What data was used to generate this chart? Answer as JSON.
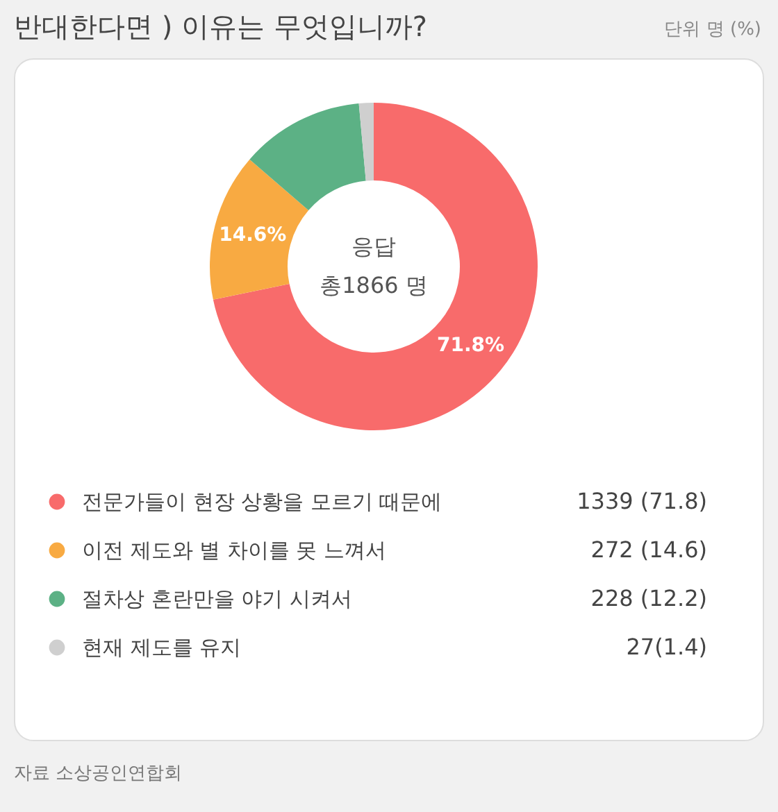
{
  "chart_data": {
    "type": "donut",
    "title": "반대한다면 ) 이유는 무엇입니까?",
    "subtitle": "단위 명 (%)",
    "categories": [
      "전문가들이 현장 상황을 모르기 때문에",
      "이전 제도와 별 차이를 못 느껴서",
      "절차상 혼란만을 야기 시켜서",
      "현재 제도를 유지"
    ],
    "values": [
      1339,
      272,
      228,
      27
    ],
    "colors": [
      "#f86b6b",
      "#f8aa42",
      "#5cb185",
      "#cfcfcf"
    ],
    "value_labels": [
      "1339 (71.8)",
      "272 (14.6)",
      "228 (12.2)",
      "27(1.4)"
    ],
    "annotations": [
      "응답",
      "총1866 명",
      "자료 소상공인연합회",
      {
        "text": "71.8%",
        "x": "전문가들이 현장 상황을 모르기 때문에"
      },
      {
        "text": "14.6%",
        "x": "이전 제도와 별 차이를 못 느껴서"
      }
    ],
    "legend": "bottom"
  }
}
